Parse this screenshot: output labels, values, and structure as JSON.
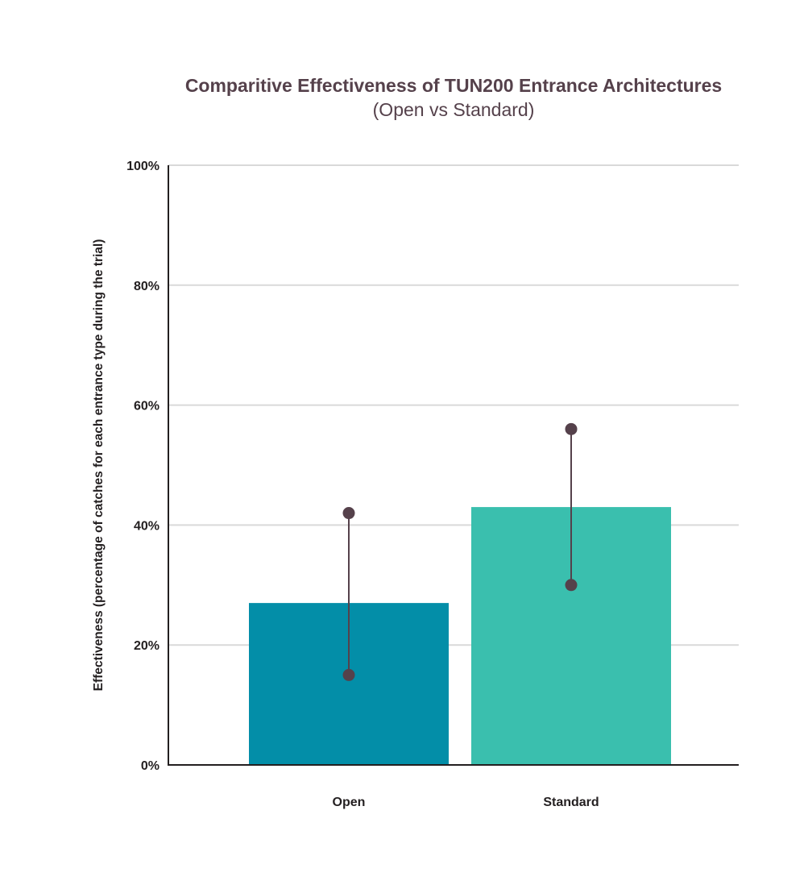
{
  "chart_data": {
    "type": "bar",
    "title": "Comparitive Effectiveness of TUN200 Entrance Architectures",
    "subtitle": "(Open vs Standard)",
    "xlabel": "",
    "ylabel": "Effectiveness (percentage of catches for each entrance type during the trial)",
    "categories": [
      "Open",
      "Standard"
    ],
    "values": [
      27,
      43
    ],
    "error_bars": [
      {
        "low": 15,
        "high": 42
      },
      {
        "low": 30,
        "high": 56
      }
    ],
    "ylim": [
      0,
      100
    ],
    "y_ticks": [
      0,
      20,
      40,
      60,
      80,
      100
    ],
    "y_tick_labels": [
      "0%",
      "20%",
      "40%",
      "60%",
      "80%",
      "100%"
    ],
    "grid": true,
    "colors": [
      "#038ea8",
      "#3abfae"
    ],
    "error_color": "#55414b"
  }
}
